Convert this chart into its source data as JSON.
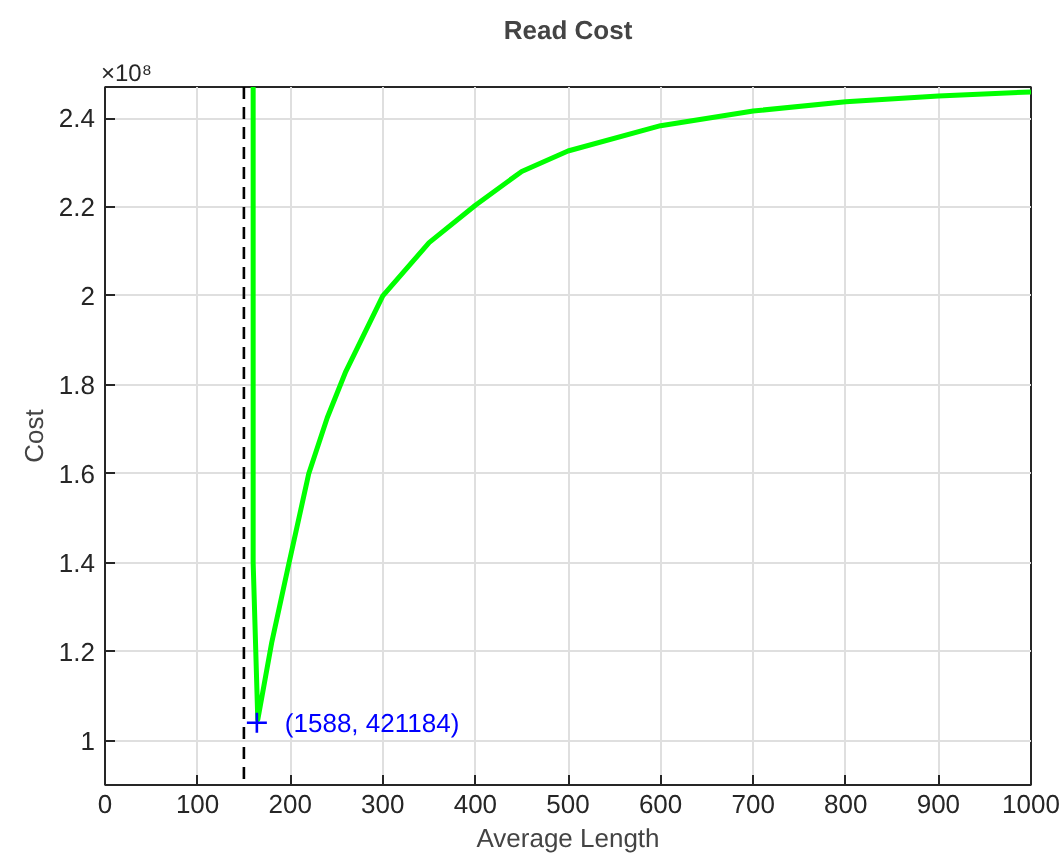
{
  "chart_data": {
    "type": "line",
    "title": "Read Cost",
    "xlabel": "Average Length",
    "ylabel": "Cost",
    "xlim": [
      0,
      1000
    ],
    "ylim": [
      0.9,
      2.47
    ],
    "xticks": [
      0,
      100,
      200,
      300,
      400,
      500,
      600,
      700,
      800,
      900,
      1000
    ],
    "yticks": [
      1,
      1.2,
      1.4,
      1.6,
      1.8,
      2,
      2.2,
      2.4
    ],
    "grid": true,
    "series": [
      {
        "color": "#00ff00",
        "marker": "none",
        "line_style": "solid",
        "x": [
          160,
          160,
          165,
          180,
          197,
          220,
          240,
          260,
          300,
          350,
          400,
          450,
          500,
          600,
          700,
          800,
          900,
          1000
        ],
        "values": [
          2.47,
          1.4,
          1.047,
          1.22,
          1.383,
          1.6,
          1.726,
          1.83,
          2.0,
          2.12,
          2.204,
          2.28,
          2.326,
          2.383,
          2.416,
          2.437,
          2.45,
          2.459
        ]
      },
      {
        "type": "scatter",
        "color": "#0000ff",
        "marker": "cross",
        "x": [
          164
        ],
        "values": [
          1.04
        ]
      }
    ],
    "ref_lines": [
      {
        "axis": "x",
        "value": 150,
        "color": "#000000",
        "line_style": "dashed"
      }
    ],
    "annotations": [
      "×10⁸",
      {
        "text": "(1588, 421184)",
        "x": 164,
        "y": 1.04
      }
    ]
  }
}
